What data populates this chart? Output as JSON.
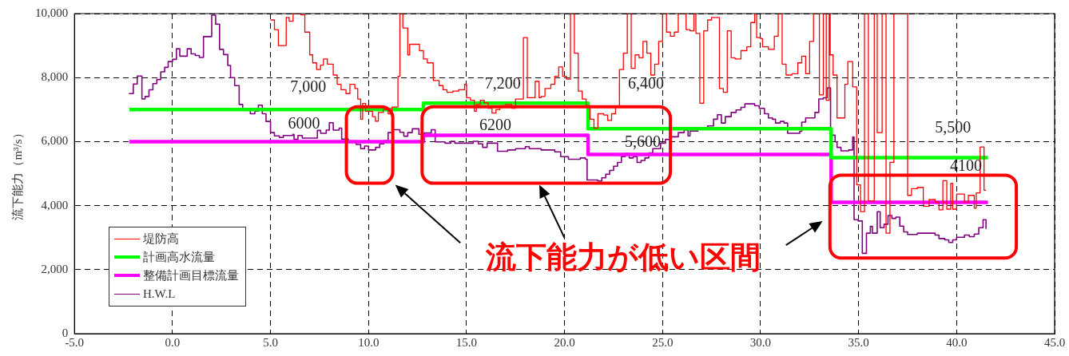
{
  "chart_data": {
    "type": "step",
    "ylabel": "流下能力（m³/s）",
    "xlim": [
      -5,
      45
    ],
    "xticks": [
      {
        "value": -5,
        "label": "-5.0"
      },
      {
        "value": 0,
        "label": "0.0"
      },
      {
        "value": 5,
        "label": "5.0"
      },
      {
        "value": 10,
        "label": "10.0"
      },
      {
        "value": 15,
        "label": "15.0"
      },
      {
        "value": 20,
        "label": "20.0"
      },
      {
        "value": 25,
        "label": "25.0"
      },
      {
        "value": 30,
        "label": "30.0"
      },
      {
        "value": 35,
        "label": "35.0"
      },
      {
        "value": 40,
        "label": "40.0"
      },
      {
        "value": 45,
        "label": "45.0"
      }
    ],
    "ylim": [
      0,
      10000
    ],
    "yticks": [
      0,
      {
        "value": 2000,
        "label": "2,000"
      },
      {
        "value": 4000,
        "label": "4,000"
      },
      {
        "value": 6000,
        "label": "6,000"
      },
      {
        "value": 8000,
        "label": "8,000"
      },
      {
        "value": 10000,
        "label": "10,000"
      }
    ],
    "grid": true,
    "legend": "bottom left",
    "series": [
      {
        "name": "堤防高",
        "color": "#ff0000",
        "x": [
          5.0,
          5.2,
          5.4,
          5.8,
          5.95,
          6.15,
          6.55,
          6.75,
          7.0,
          7.15,
          7.35,
          7.55,
          7.7,
          7.9,
          8.2,
          8.4,
          8.6,
          8.85,
          9.05,
          9.3,
          9.45,
          9.6,
          9.7,
          9.85,
          10.2,
          10.35,
          10.5,
          10.75,
          11.0,
          11.2,
          11.5,
          11.6,
          11.75,
          12.0,
          12.1,
          12.6,
          12.8,
          13.0,
          13.3,
          13.6,
          13.8,
          14.0,
          14.3,
          14.6,
          14.9,
          15.0,
          15.2,
          15.4,
          15.5,
          15.7,
          15.9,
          16.1,
          16.3,
          16.5,
          16.7,
          17.0,
          17.3,
          17.5,
          17.9,
          18.1,
          18.5,
          18.7,
          18.8,
          19.0,
          19.3,
          19.5,
          19.7,
          19.9,
          20.1,
          20.3,
          20.5,
          20.7,
          20.9,
          21.1,
          21.3,
          21.5,
          21.7,
          22.0,
          22.2,
          22.4,
          22.6,
          22.8,
          23.0,
          23.2,
          23.4,
          23.6,
          23.8,
          24.0,
          24.2,
          24.4,
          24.6,
          24.8,
          25.0,
          25.2,
          25.4,
          25.6,
          25.8,
          26.2,
          26.4,
          26.6,
          26.7,
          26.9,
          27.1,
          27.3,
          27.5,
          27.9,
          28.1,
          28.3,
          28.5,
          28.7,
          29.0,
          29.3,
          29.5,
          29.7,
          29.8,
          30.0,
          30.1,
          30.4,
          30.7,
          30.9,
          31.1,
          31.3,
          31.6,
          31.9,
          32.1,
          32.3,
          32.5,
          32.7,
          33.0,
          33.2,
          33.35,
          33.5,
          33.55,
          33.7,
          33.9,
          34.3,
          34.45,
          34.7,
          34.9,
          35.1,
          35.3,
          35.5,
          35.8,
          35.95,
          36.2,
          36.4,
          36.6,
          36.8,
          37.5,
          37.7,
          38.0,
          38.3,
          38.6,
          38.9,
          39.1,
          39.3,
          39.5,
          39.7,
          39.8,
          40.0,
          40.4,
          40.6,
          40.9,
          41.0,
          41.2,
          41.4,
          41.5
        ],
        "values": [
          9800,
          9500,
          9000,
          9880,
          9760,
          10000,
          9960,
          9420,
          8710,
          8460,
          8250,
          8390,
          8580,
          8420,
          8080,
          7790,
          7620,
          7500,
          7790,
          7660,
          7330,
          6700,
          7190,
          6950,
          6780,
          6640,
          6910,
          7000,
          6870,
          7080,
          8040,
          10000,
          9550,
          8710,
          9040,
          8840,
          8580,
          8460,
          7910,
          7750,
          7620,
          7540,
          7580,
          7620,
          7790,
          7370,
          7290,
          6950,
          7160,
          7290,
          7210,
          7040,
          6890,
          7000,
          7120,
          7160,
          7040,
          7330,
          9250,
          7370,
          7880,
          7370,
          7410,
          7660,
          7790,
          8040,
          8330,
          8040,
          7950,
          10000,
          8760,
          7580,
          7330,
          7120,
          6700,
          6420,
          6870,
          6830,
          6660,
          6870,
          7080,
          8250,
          8760,
          10000,
          8290,
          8710,
          8620,
          9130,
          8760,
          8080,
          8420,
          9130,
          10000,
          9420,
          9290,
          9420,
          10000,
          9500,
          9460,
          10000,
          9380,
          7200,
          9460,
          9800,
          9880,
          7660,
          7540,
          9460,
          8620,
          8580,
          8840,
          8960,
          9720,
          10000,
          9250,
          9220,
          8960,
          8880,
          9290,
          10000,
          8420,
          8080,
          8120,
          8460,
          8670,
          8120,
          9130,
          10000,
          7460,
          10000,
          7290,
          10000,
          8710,
          8080,
          6740,
          7790,
          8500,
          7710,
          4650,
          3810,
          10000,
          4150,
          10000,
          6280,
          10000,
          3140,
          5350,
          10000,
          4320,
          4530,
          4570,
          3980,
          4190,
          4110,
          3870,
          4780,
          3890,
          4700,
          3890,
          4360,
          4110,
          4320,
          3920,
          4400,
          5830,
          4480,
          4480
        ]
      },
      {
        "name": "計画高水流量",
        "color": "#00ff00",
        "x": [
          -2.2,
          12.8,
          21.2,
          33.6,
          41.6
        ],
        "values": [
          7000,
          7200,
          6400,
          5500,
          5500
        ]
      },
      {
        "name": "整備計画目標流量",
        "color": "#ff00ff",
        "x": [
          -2.2,
          12.8,
          21.2,
          33.6,
          41.6
        ],
        "values": [
          6000,
          6200,
          5600,
          4100,
          4100
        ]
      },
      {
        "name": "H.W.L",
        "color": "#800080",
        "x": [
          -2.23,
          -2.0,
          -1.8,
          -1.56,
          -1.4,
          -1.2,
          -1.0,
          -0.8,
          -0.6,
          -0.4,
          -0.22,
          0.0,
          0.2,
          0.37,
          0.75,
          0.95,
          1.16,
          1.37,
          1.58,
          2.0,
          2.2,
          2.4,
          2.6,
          2.82,
          2.96,
          3.17,
          3.4,
          3.58,
          3.97,
          4.2,
          4.38,
          4.58,
          4.77,
          5.0,
          5.2,
          5.45,
          5.65,
          6.14,
          6.2,
          6.4,
          6.62,
          7.39,
          7.56,
          7.84,
          8.0,
          8.2,
          8.5,
          8.63,
          8.97,
          9.37,
          9.6,
          9.8,
          10.0,
          10.36,
          10.57,
          10.78,
          11.0,
          11.26,
          11.6,
          11.8,
          12.0,
          12.23,
          12.57,
          12.85,
          13.2,
          13.4,
          13.9,
          14.2,
          14.4,
          15.34,
          15.6,
          15.82,
          16.05,
          16.58,
          17.1,
          17.5,
          18.0,
          18.2,
          18.8,
          19.5,
          19.8,
          20.2,
          20.8,
          21.06,
          21.15,
          21.7,
          21.9,
          22.1,
          22.3,
          22.5,
          22.7,
          22.9,
          23.1,
          23.3,
          23.5,
          23.7,
          23.9,
          24.1,
          24.3,
          24.5,
          24.9,
          25.15,
          25.4,
          25.8,
          26.1,
          26.3,
          26.4,
          26.8,
          27.3,
          27.6,
          27.8,
          28.0,
          28.2,
          28.5,
          28.75,
          29.0,
          29.2,
          29.7,
          29.93,
          30.2,
          30.4,
          30.6,
          30.76,
          31.0,
          31.2,
          31.38,
          32.0,
          32.1,
          32.3,
          32.77,
          32.97,
          33.2,
          33.4,
          33.57,
          33.8,
          33.9,
          34.1,
          34.5,
          34.7,
          34.77,
          34.98,
          35.19,
          35.4,
          35.6,
          35.7,
          35.95,
          36.1,
          36.3,
          36.5,
          36.7,
          36.9,
          37.1,
          37.3,
          37.5,
          38.0,
          38.9,
          39.1,
          39.4,
          39.6,
          39.8,
          40.0,
          40.4,
          40.65,
          40.9,
          41.13,
          41.35,
          41.5
        ],
        "values": [
          7500,
          7800,
          8050,
          7330,
          7410,
          7620,
          7810,
          7940,
          8180,
          8320,
          8500,
          8570,
          8900,
          8670,
          8900,
          8740,
          8690,
          8630,
          9280,
          9950,
          9670,
          8880,
          8720,
          8380,
          8000,
          7750,
          7160,
          7040,
          6870,
          6950,
          7140,
          6870,
          6630,
          6280,
          6180,
          6130,
          6190,
          6230,
          6070,
          6190,
          6110,
          6350,
          6260,
          6360,
          6590,
          6360,
          6420,
          6080,
          6010,
          5910,
          5780,
          5860,
          5740,
          5820,
          5930,
          6030,
          6280,
          6370,
          6290,
          6170,
          6280,
          6400,
          6230,
          6270,
          6370,
          5990,
          5950,
          6010,
          5950,
          6010,
          5930,
          5820,
          5950,
          5700,
          5740,
          5780,
          5840,
          5780,
          5740,
          5680,
          5530,
          5450,
          5490,
          5450,
          4800,
          4770,
          4870,
          4980,
          5100,
          5230,
          5350,
          5530,
          5630,
          5490,
          5530,
          5350,
          5410,
          5490,
          5650,
          5780,
          5950,
          6070,
          6150,
          6280,
          6360,
          6180,
          6330,
          6400,
          6490,
          6700,
          6840,
          6580,
          6780,
          6910,
          6990,
          7070,
          7180,
          7120,
          7040,
          6870,
          6740,
          6700,
          6580,
          6630,
          6580,
          6260,
          6320,
          6610,
          6740,
          6910,
          7330,
          7370,
          7680,
          6200,
          5990,
          5820,
          5710,
          5740,
          6140,
          3560,
          3520,
          2510,
          3140,
          3350,
          3140,
          3810,
          3310,
          3420,
          3690,
          3600,
          3640,
          3360,
          3180,
          3100,
          3140,
          3080,
          2970,
          2930,
          2850,
          2930,
          3010,
          3080,
          3030,
          3110,
          3310,
          3560,
          3270
        ]
      }
    ],
    "annotations": [
      "7,000",
      "6000",
      "7,200",
      "6200",
      "6,400",
      "5,600",
      "5,500",
      "4100",
      "流下能力が低い区間"
    ]
  }
}
